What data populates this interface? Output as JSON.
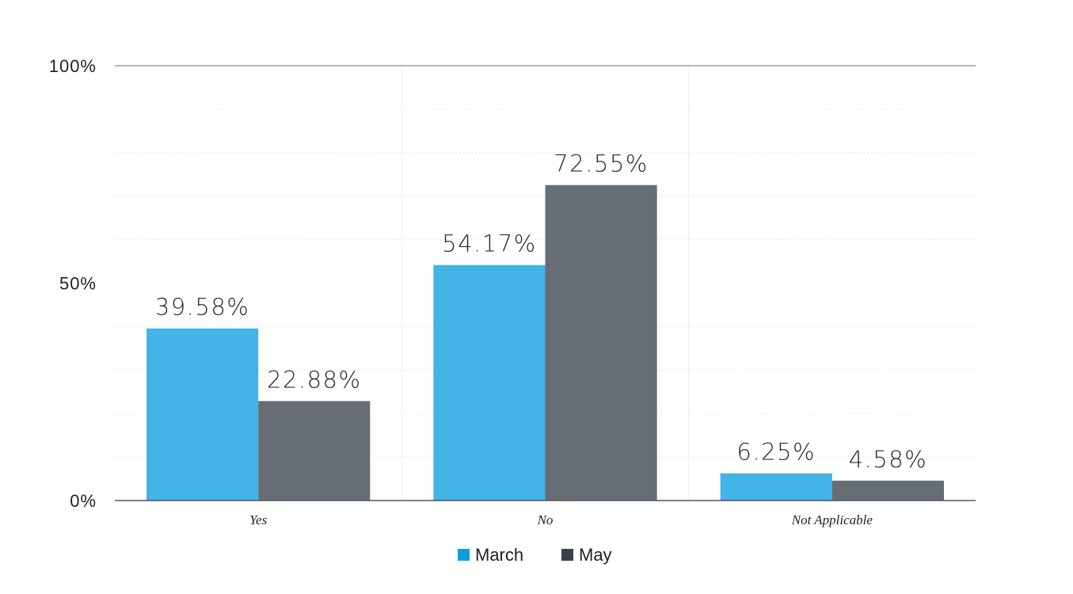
{
  "chart_data": {
    "type": "bar",
    "categories": [
      "Yes",
      "No",
      "Not Applicable"
    ],
    "series": [
      {
        "name": "March",
        "values": [
          39.58,
          54.17,
          6.25
        ],
        "labels": [
          "39.58%",
          "54.17%",
          "6.25%"
        ],
        "color": "#42b4e6"
      },
      {
        "name": "May",
        "values": [
          22.88,
          72.55,
          4.58
        ],
        "labels": [
          "22.88%",
          "72.55%",
          "4.58%"
        ],
        "color": "#676d74"
      }
    ],
    "y_ticks": [
      {
        "value": 0,
        "label": "0%"
      },
      {
        "value": 50,
        "label": "50%"
      },
      {
        "value": 100,
        "label": "100%"
      }
    ],
    "ylim": [
      0,
      100
    ],
    "minor_grid_step": 10,
    "grid": true,
    "legend_position": "bottom-center",
    "legend_colors": {
      "March": "#0e9ddb",
      "May": "#3a4148"
    }
  }
}
